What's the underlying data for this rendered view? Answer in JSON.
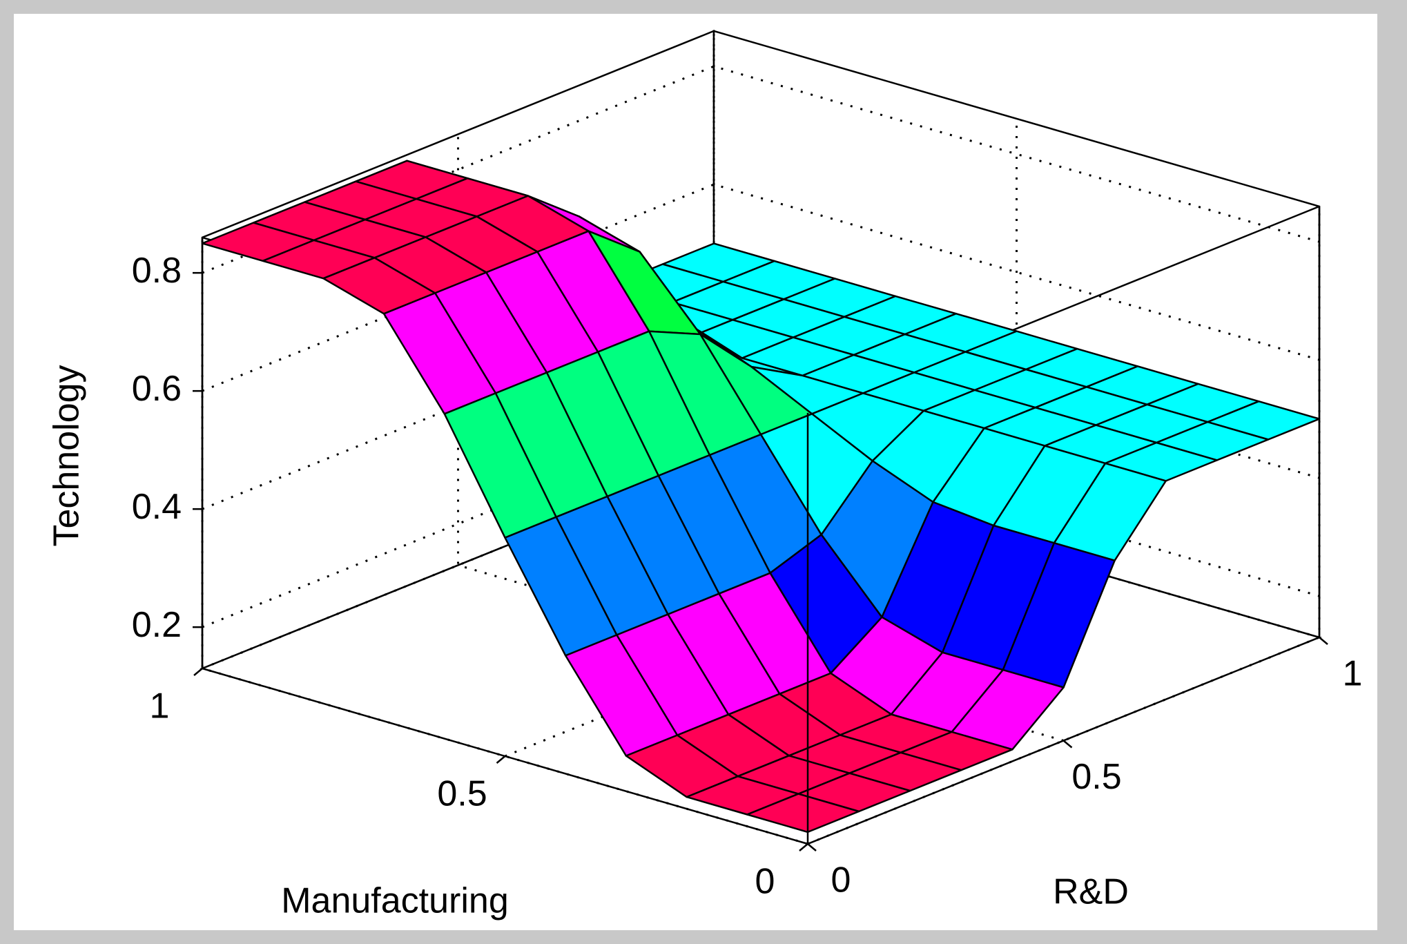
{
  "chart_data": {
    "type": "surface",
    "x_label": "Manufacturing",
    "y_label": "R&D",
    "z_label": "Technology",
    "x": [
      0,
      0.1,
      0.2,
      0.3,
      0.4,
      0.5,
      0.6,
      0.7,
      0.8,
      0.9,
      1
    ],
    "y": [
      0,
      0.1,
      0.2,
      0.3,
      0.4,
      0.5,
      0.6,
      0.7,
      0.8,
      0.9,
      1
    ],
    "z": [
      [
        0.15,
        0.15,
        0.15,
        0.15,
        0.15,
        0.22,
        0.4,
        0.5,
        0.5,
        0.5,
        0.5
      ],
      [
        0.15,
        0.15,
        0.15,
        0.15,
        0.15,
        0.22,
        0.4,
        0.5,
        0.5,
        0.5,
        0.5
      ],
      [
        0.15,
        0.15,
        0.15,
        0.15,
        0.15,
        0.22,
        0.4,
        0.5,
        0.5,
        0.5,
        0.5
      ],
      [
        0.19,
        0.19,
        0.19,
        0.19,
        0.19,
        0.25,
        0.41,
        0.5,
        0.5,
        0.5,
        0.5
      ],
      [
        0.33,
        0.33,
        0.33,
        0.33,
        0.33,
        0.36,
        0.45,
        0.5,
        0.5,
        0.5,
        0.5
      ],
      [
        0.5,
        0.5,
        0.5,
        0.5,
        0.5,
        0.5,
        0.5,
        0.5,
        0.5,
        0.5,
        0.5
      ],
      [
        0.68,
        0.68,
        0.68,
        0.68,
        0.68,
        0.64,
        0.55,
        0.5,
        0.5,
        0.5,
        0.5
      ],
      [
        0.82,
        0.82,
        0.82,
        0.82,
        0.82,
        0.75,
        0.59,
        0.5,
        0.5,
        0.5,
        0.5
      ],
      [
        0.85,
        0.85,
        0.85,
        0.85,
        0.85,
        0.78,
        0.6,
        0.5,
        0.5,
        0.5,
        0.5
      ],
      [
        0.85,
        0.85,
        0.85,
        0.85,
        0.85,
        0.78,
        0.6,
        0.5,
        0.5,
        0.5,
        0.5
      ],
      [
        0.85,
        0.85,
        0.85,
        0.85,
        0.85,
        0.78,
        0.6,
        0.5,
        0.5,
        0.5,
        0.5
      ]
    ],
    "xlim": [
      0,
      1
    ],
    "ylim": [
      0,
      1
    ],
    "zlim": [
      0.13,
      0.86
    ],
    "xticks": [
      0,
      0.5,
      1
    ],
    "yticks": [
      0,
      0.5,
      1
    ],
    "zticks": [
      0.2,
      0.4,
      0.6,
      0.8
    ],
    "grid": true,
    "colormap": [
      "#ff0055",
      "#ff00ff",
      "#0000ff",
      "#0080ff",
      "#00ffff",
      "#00ff80",
      "#00ff40",
      "#ff00ff",
      "#ff0055"
    ]
  }
}
